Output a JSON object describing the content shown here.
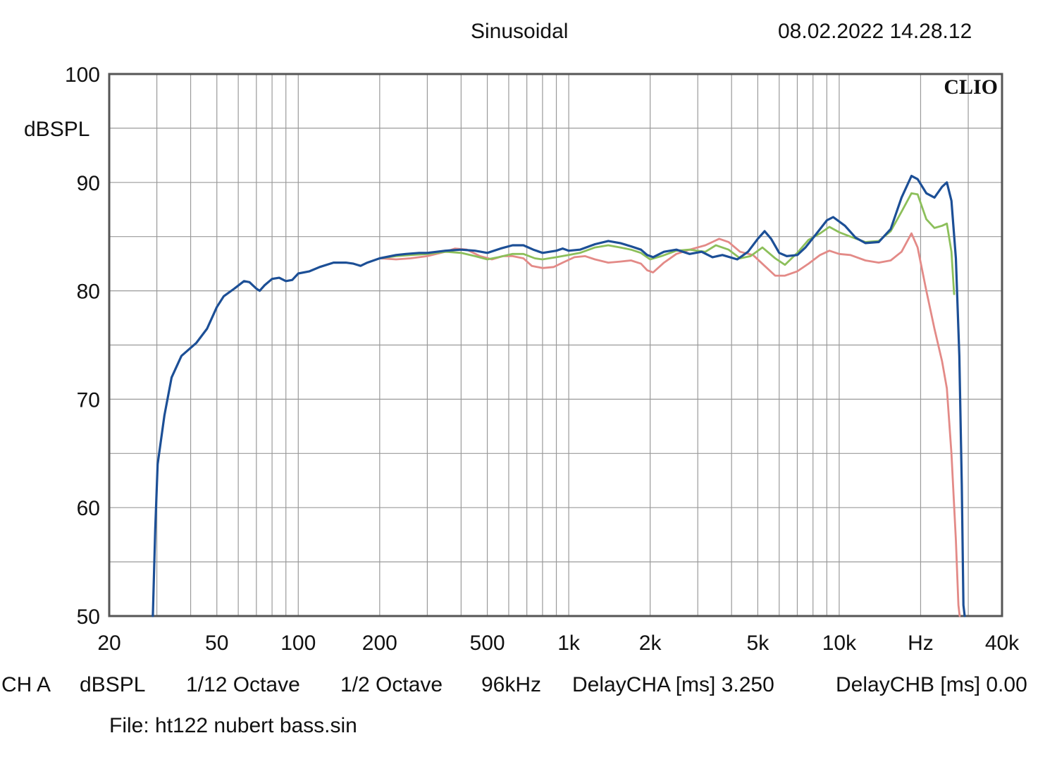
{
  "header": {
    "mode": "Sinusoidal",
    "timestamp": "08.02.2022 14.28.12"
  },
  "brand": "CLIO",
  "footer": {
    "settings": [
      "CH A",
      "dBSPL",
      "1/12 Octave",
      "1/2 Octave",
      "96kHz",
      "DelayCHA [ms] 3.250",
      "DelayCHB [ms] 0.00"
    ],
    "file": "File: ht122 nubert bass.sin"
  },
  "colors": {
    "series_blue": "#1c4f96",
    "series_green": "#8cbf5a",
    "series_red": "#e38a87",
    "grid": "#9a9a9a",
    "frame": "#555555"
  },
  "chart_data": {
    "type": "line",
    "title": "Sinusoidal",
    "ylabel": "dBSPL",
    "xlabel": "",
    "xscale": "log",
    "xlim": [
      20,
      40000
    ],
    "ylim": [
      50,
      100
    ],
    "grid": true,
    "x_tick_labels": [
      {
        "value": 20,
        "label": "20"
      },
      {
        "value": 50,
        "label": "50"
      },
      {
        "value": 100,
        "label": "100"
      },
      {
        "value": 200,
        "label": "200"
      },
      {
        "value": 500,
        "label": "500"
      },
      {
        "value": 1000,
        "label": "1k"
      },
      {
        "value": 2000,
        "label": "2k"
      },
      {
        "value": 5000,
        "label": "5k"
      },
      {
        "value": 10000,
        "label": "10k"
      },
      {
        "value": 20000,
        "label": "Hz"
      },
      {
        "value": 40000,
        "label": "40k"
      }
    ],
    "y_tick_labels": [
      {
        "value": 100,
        "label": "100"
      },
      {
        "value": 90,
        "label": "90"
      },
      {
        "value": 80,
        "label": "80"
      },
      {
        "value": 70,
        "label": "70"
      },
      {
        "value": 60,
        "label": "60"
      },
      {
        "value": 50,
        "label": "50"
      }
    ],
    "series": [
      {
        "color": "#1c4f96",
        "points": [
          [
            29,
            50
          ],
          [
            29.6,
            58
          ],
          [
            30.2,
            64
          ],
          [
            32,
            68.5
          ],
          [
            34,
            72
          ],
          [
            37,
            74
          ],
          [
            42,
            75.2
          ],
          [
            46,
            76.5
          ],
          [
            50,
            78.5
          ],
          [
            53,
            79.5
          ],
          [
            58,
            80.2
          ],
          [
            63,
            80.9
          ],
          [
            66,
            80.8
          ],
          [
            70,
            80.2
          ],
          [
            72,
            80
          ],
          [
            75,
            80.5
          ],
          [
            80,
            81.1
          ],
          [
            85,
            81.2
          ],
          [
            90,
            80.9
          ],
          [
            95,
            81
          ],
          [
            100,
            81.6
          ],
          [
            110,
            81.8
          ],
          [
            120,
            82.2
          ],
          [
            135,
            82.6
          ],
          [
            150,
            82.6
          ],
          [
            160,
            82.5
          ],
          [
            170,
            82.3
          ],
          [
            180,
            82.6
          ],
          [
            200,
            83
          ],
          [
            230,
            83.3
          ],
          [
            250,
            83.4
          ],
          [
            280,
            83.5
          ],
          [
            300,
            83.5
          ],
          [
            350,
            83.7
          ],
          [
            400,
            83.8
          ],
          [
            450,
            83.7
          ],
          [
            500,
            83.5
          ],
          [
            560,
            83.9
          ],
          [
            620,
            84.2
          ],
          [
            680,
            84.2
          ],
          [
            740,
            83.8
          ],
          [
            800,
            83.5
          ],
          [
            900,
            83.7
          ],
          [
            950,
            83.9
          ],
          [
            1000,
            83.7
          ],
          [
            1100,
            83.8
          ],
          [
            1250,
            84.3
          ],
          [
            1400,
            84.6
          ],
          [
            1550,
            84.4
          ],
          [
            1700,
            84.1
          ],
          [
            1850,
            83.8
          ],
          [
            1950,
            83.3
          ],
          [
            2050,
            83.1
          ],
          [
            2250,
            83.6
          ],
          [
            2500,
            83.8
          ],
          [
            2800,
            83.4
          ],
          [
            3100,
            83.6
          ],
          [
            3400,
            83.1
          ],
          [
            3700,
            83.3
          ],
          [
            4200,
            82.9
          ],
          [
            4600,
            83.6
          ],
          [
            5000,
            84.8
          ],
          [
            5300,
            85.5
          ],
          [
            5600,
            84.8
          ],
          [
            6000,
            83.5
          ],
          [
            6400,
            83.2
          ],
          [
            7000,
            83.3
          ],
          [
            7500,
            84
          ],
          [
            8200,
            85.2
          ],
          [
            9000,
            86.5
          ],
          [
            9500,
            86.8
          ],
          [
            10500,
            86
          ],
          [
            11500,
            84.9
          ],
          [
            12500,
            84.4
          ],
          [
            14000,
            84.5
          ],
          [
            15500,
            85.7
          ],
          [
            17000,
            88.6
          ],
          [
            18500,
            90.6
          ],
          [
            19500,
            90.3
          ],
          [
            21000,
            89
          ],
          [
            22500,
            88.6
          ],
          [
            24000,
            89.6
          ],
          [
            25000,
            90
          ],
          [
            26000,
            88.3
          ],
          [
            27000,
            83
          ],
          [
            27800,
            74
          ],
          [
            28400,
            62
          ],
          [
            28800,
            51
          ],
          [
            29100,
            50
          ]
        ]
      },
      {
        "color": "#8cbf5a",
        "points": [
          [
            200,
            83
          ],
          [
            230,
            83.2
          ],
          [
            260,
            83.3
          ],
          [
            300,
            83.4
          ],
          [
            350,
            83.6
          ],
          [
            400,
            83.5
          ],
          [
            450,
            83.2
          ],
          [
            500,
            82.9
          ],
          [
            550,
            83.1
          ],
          [
            620,
            83.4
          ],
          [
            680,
            83.4
          ],
          [
            750,
            83
          ],
          [
            800,
            82.9
          ],
          [
            900,
            83.1
          ],
          [
            1000,
            83.3
          ],
          [
            1100,
            83.5
          ],
          [
            1250,
            84
          ],
          [
            1400,
            84.2
          ],
          [
            1550,
            84
          ],
          [
            1700,
            83.8
          ],
          [
            1850,
            83.5
          ],
          [
            2000,
            82.9
          ],
          [
            2200,
            83.2
          ],
          [
            2500,
            83.7
          ],
          [
            2800,
            83.8
          ],
          [
            3200,
            83.6
          ],
          [
            3500,
            84.2
          ],
          [
            3900,
            83.8
          ],
          [
            4300,
            83
          ],
          [
            4700,
            83.2
          ],
          [
            5200,
            84
          ],
          [
            5800,
            83
          ],
          [
            6300,
            82.4
          ],
          [
            7000,
            83.5
          ],
          [
            7700,
            84.7
          ],
          [
            8500,
            85.3
          ],
          [
            9200,
            85.9
          ],
          [
            10000,
            85.4
          ],
          [
            11000,
            85
          ],
          [
            12500,
            84.5
          ],
          [
            14000,
            84.6
          ],
          [
            15500,
            85.5
          ],
          [
            17000,
            87.3
          ],
          [
            18500,
            89
          ],
          [
            19500,
            88.9
          ],
          [
            21000,
            86.6
          ],
          [
            22500,
            85.8
          ],
          [
            24000,
            86
          ],
          [
            25000,
            86.2
          ],
          [
            26000,
            83.6
          ],
          [
            26600,
            79.7
          ]
        ]
      },
      {
        "color": "#e38a87",
        "points": [
          [
            200,
            83
          ],
          [
            230,
            82.9
          ],
          [
            260,
            83
          ],
          [
            300,
            83.2
          ],
          [
            350,
            83.6
          ],
          [
            380,
            83.9
          ],
          [
            420,
            83.8
          ],
          [
            470,
            83.2
          ],
          [
            520,
            82.9
          ],
          [
            570,
            83.2
          ],
          [
            620,
            83.2
          ],
          [
            680,
            83
          ],
          [
            730,
            82.3
          ],
          [
            800,
            82.1
          ],
          [
            880,
            82.2
          ],
          [
            950,
            82.6
          ],
          [
            1050,
            83.1
          ],
          [
            1150,
            83.2
          ],
          [
            1250,
            82.9
          ],
          [
            1400,
            82.6
          ],
          [
            1550,
            82.7
          ],
          [
            1700,
            82.8
          ],
          [
            1850,
            82.5
          ],
          [
            1950,
            81.9
          ],
          [
            2050,
            81.7
          ],
          [
            2250,
            82.6
          ],
          [
            2500,
            83.4
          ],
          [
            2800,
            83.8
          ],
          [
            3200,
            84.2
          ],
          [
            3600,
            84.8
          ],
          [
            3900,
            84.5
          ],
          [
            4300,
            83.6
          ],
          [
            4800,
            83.3
          ],
          [
            5300,
            82.3
          ],
          [
            5800,
            81.4
          ],
          [
            6300,
            81.4
          ],
          [
            7000,
            81.8
          ],
          [
            7700,
            82.5
          ],
          [
            8500,
            83.3
          ],
          [
            9200,
            83.7
          ],
          [
            10000,
            83.4
          ],
          [
            11000,
            83.3
          ],
          [
            12500,
            82.8
          ],
          [
            14000,
            82.6
          ],
          [
            15500,
            82.8
          ],
          [
            17000,
            83.6
          ],
          [
            18500,
            85.3
          ],
          [
            19500,
            84
          ],
          [
            21000,
            80
          ],
          [
            22500,
            76.5
          ],
          [
            24000,
            73.5
          ],
          [
            25000,
            71
          ],
          [
            26000,
            65
          ],
          [
            27000,
            57
          ],
          [
            27600,
            51
          ],
          [
            27900,
            50
          ]
        ]
      }
    ]
  }
}
